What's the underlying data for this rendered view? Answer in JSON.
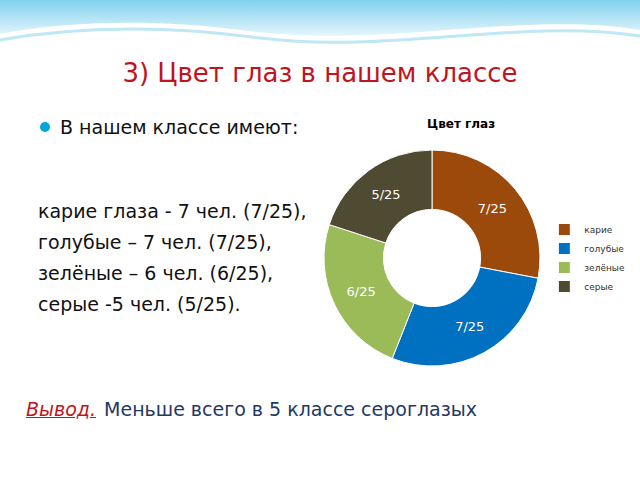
{
  "slide": {
    "title": "3) Цвет глаз в нашем классе",
    "bullet": "В нашем классе имеют:",
    "body": "карие глаза - 7 чел. (7/25),   голубые – 7 чел. (7/25), зелёные – 6 чел. (6/25), серые -5 чел. (5/25).",
    "conclusion_label": "Вывод.",
    "conclusion": "Меньше всего в 5 классе сероглазых"
  },
  "chart_data": {
    "type": "pie",
    "title": "Цвет глаз",
    "categories": [
      "карие",
      "голубые",
      "зелёные",
      "серые"
    ],
    "values": [
      7,
      7,
      6,
      5
    ],
    "value_labels": [
      "7/25",
      "7/25",
      "6/25",
      "5/25"
    ],
    "colors": [
      "#9C4A0B",
      "#0070C0",
      "#9BBB59",
      "#4F4A32"
    ],
    "data_labels": true,
    "legend": "right"
  }
}
